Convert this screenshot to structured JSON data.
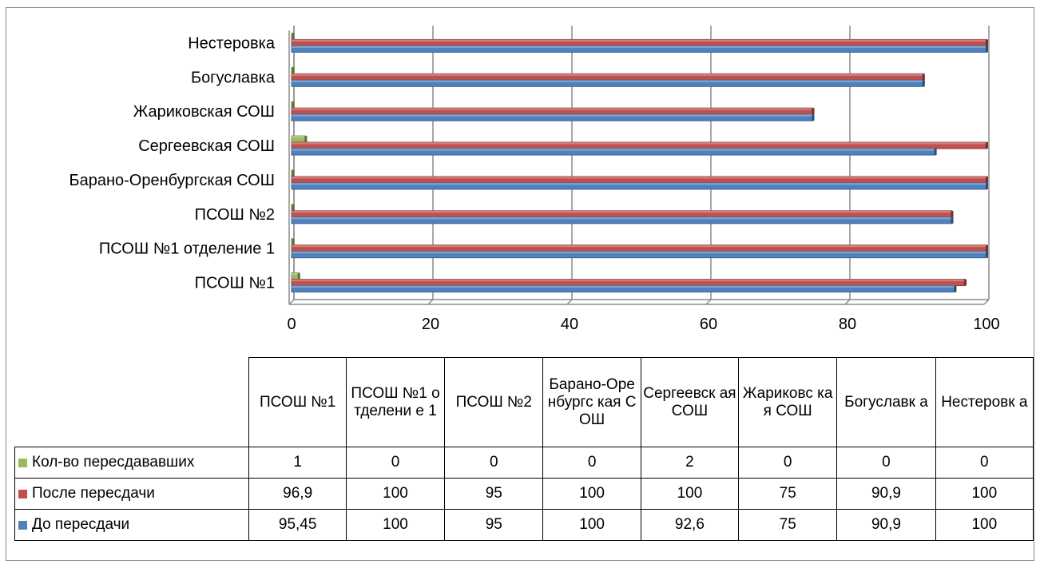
{
  "chart_data": {
    "type": "bar",
    "orientation": "horizontal",
    "categories": [
      "ПСОШ №1",
      "ПСОШ №1 отделение 1",
      "ПСОШ №2",
      "Барано-Оренбургская СОШ",
      "Сергеевская СОШ ",
      "Жариковская СОШ ",
      "Богуславка",
      "Нестеровка"
    ],
    "table_headers": [
      "ПСОШ №1",
      "ПСОШ №1 отделени е 1",
      "ПСОШ №2",
      "Барано-Оренбургс кая СОШ",
      "Сергеевск ая СОШ",
      "Жариковс кая СОШ",
      "Богуславк а",
      "Нестеровк а"
    ],
    "series": [
      {
        "name": "Кол-во пересдававших",
        "color": "#9bbb59",
        "values": [
          1,
          0,
          0,
          0,
          2,
          0,
          0,
          0
        ],
        "labels": [
          "1",
          "0",
          "0",
          "0",
          "2",
          "0",
          "0",
          "0"
        ]
      },
      {
        "name": "После пересдачи",
        "color": "#c0504d",
        "values": [
          96.9,
          100,
          95,
          100,
          100,
          75,
          90.9,
          100
        ],
        "labels": [
          "96,9",
          "100",
          "95",
          "100",
          "100",
          "75",
          "90,9",
          "100"
        ]
      },
      {
        "name": "До пересдачи",
        "color": "#4f81bd",
        "values": [
          95.45,
          100,
          95,
          100,
          92.6,
          75,
          90.9,
          100
        ],
        "labels": [
          "95,45",
          "100",
          "95",
          "100",
          "92,6",
          "75",
          "90,9",
          "100"
        ]
      }
    ],
    "xlim": [
      0,
      100
    ],
    "xticks": [
      "0",
      "20",
      "40",
      "60",
      "80",
      "100"
    ],
    "grid": true,
    "legend": "data-table"
  }
}
